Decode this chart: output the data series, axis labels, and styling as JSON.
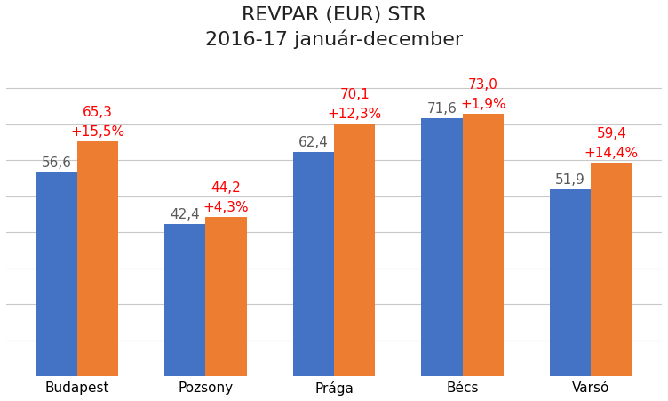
{
  "title_line1": "REVPAR (EUR) STR",
  "title_line2": "2016-17 január-december",
  "categories": [
    "Budapest",
    "Pozsony",
    "Prága",
    "Bécs",
    "Varsó"
  ],
  "values_2016": [
    56.6,
    42.4,
    62.4,
    71.6,
    51.9
  ],
  "values_2017": [
    65.3,
    44.2,
    70.1,
    73.0,
    59.4
  ],
  "changes": [
    "+15,5%",
    "+4,3%",
    "+12,3%",
    "+1,9%",
    "+14,4%"
  ],
  "bar_color_2016": "#4472C4",
  "bar_color_2017": "#ED7D31",
  "label_color_2016": "#595959",
  "label_color_2017": "#FF0000",
  "change_color": "#FF0000",
  "background_color": "#FFFFFF",
  "grid_color": "#C8C8C8",
  "ylim": [
    0,
    88
  ],
  "yticks": [
    10,
    20,
    30,
    40,
    50,
    60,
    70,
    80
  ],
  "bar_width": 0.32,
  "title_fontsize": 16,
  "label_fontsize": 11,
  "tick_fontsize": 11
}
